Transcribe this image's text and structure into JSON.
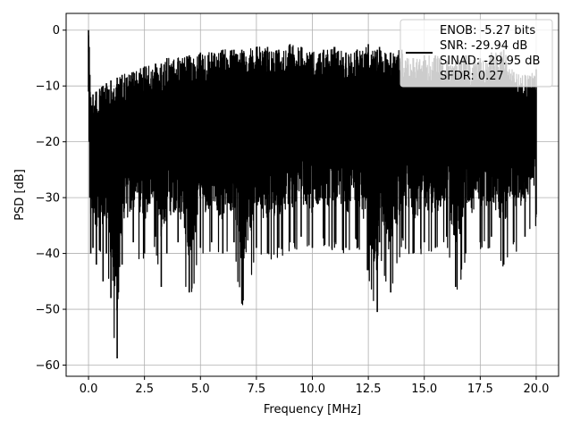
{
  "chart_data": {
    "type": "line",
    "title": "",
    "xlabel": "Frequency [MHz]",
    "ylabel": "PSD [dB]",
    "xlim": [
      -1.0,
      21.0
    ],
    "ylim": [
      -62,
      3
    ],
    "xticks": [
      0.0,
      2.5,
      5.0,
      7.5,
      10.0,
      12.5,
      15.0,
      17.5,
      20.0
    ],
    "xtick_labels": [
      "0.0",
      "2.5",
      "5.0",
      "7.5",
      "10.0",
      "12.5",
      "15.0",
      "17.5",
      "20.0"
    ],
    "yticks": [
      0,
      -10,
      -20,
      -30,
      -40,
      -50,
      -60
    ],
    "ytick_labels": [
      "0",
      "−10",
      "−20",
      "−30",
      "−40",
      "−50",
      "−60"
    ],
    "grid": true,
    "legend_position": "upper-right",
    "series": [
      {
        "name": "",
        "color": "#000000",
        "x": [
          0.0,
          0.03,
          0.06,
          0.1,
          0.2,
          0.35,
          0.5,
          0.65,
          0.8,
          1.0,
          1.28,
          1.5,
          2.0,
          2.5,
          3.0,
          3.25,
          3.5,
          4.0,
          4.5,
          5.0,
          5.5,
          6.0,
          6.5,
          6.85,
          7.5,
          8.0,
          8.5,
          9.0,
          9.5,
          10.0,
          10.5,
          11.0,
          11.5,
          12.0,
          12.5,
          12.9,
          13.0,
          13.5,
          14.0,
          14.5,
          15.0,
          15.5,
          16.0,
          16.4,
          16.85,
          17.5,
          18.0,
          18.55,
          19.0,
          19.5,
          20.0
        ],
        "y_upper": [
          0.0,
          -3.0,
          -8.0,
          -12.0,
          -11.5,
          -11.0,
          -10.5,
          -10.0,
          -9.5,
          -9.0,
          -8.5,
          -8.0,
          -7.5,
          -6.5,
          -6.0,
          -6.0,
          -5.0,
          -5.0,
          -4.5,
          -4.0,
          -4.0,
          -3.5,
          -3.5,
          -3.5,
          -3.0,
          -3.0,
          -3.5,
          -2.5,
          -3.0,
          -4.0,
          -3.5,
          -3.0,
          -4.0,
          -3.5,
          -2.5,
          -3.5,
          -3.0,
          -4.0,
          -3.5,
          -5.0,
          -4.5,
          -4.5,
          -5.5,
          -5.5,
          -4.5,
          -5.0,
          -4.0,
          -3.5,
          -7.5,
          -8.0,
          -7.0
        ],
        "y_lower": [
          -11.0,
          -20.0,
          -30.0,
          -40.0,
          -39.0,
          -42.0,
          -38.0,
          -45.0,
          -40.0,
          -48.0,
          -58.8,
          -42.0,
          -38.0,
          -40.0,
          -37.0,
          -46.0,
          -40.0,
          -38.0,
          -47.0,
          -39.0,
          -38.0,
          -40.0,
          -38.0,
          -49.0,
          -39.0,
          -40.0,
          -39.0,
          -38.0,
          -37.0,
          -39.0,
          -37.0,
          -38.0,
          -39.0,
          -37.0,
          -43.0,
          -50.5,
          -38.0,
          -47.0,
          -37.0,
          -40.0,
          -38.0,
          -39.0,
          -37.0,
          -46.0,
          -40.0,
          -38.0,
          -37.0,
          -42.0,
          -38.0,
          -37.0,
          -33.0
        ]
      }
    ],
    "annotations": [
      "ENOB: -5.27 bits",
      "SNR: -29.94 dB",
      "SINAD: -29.95 dB",
      "SFDR: 0.27"
    ]
  }
}
